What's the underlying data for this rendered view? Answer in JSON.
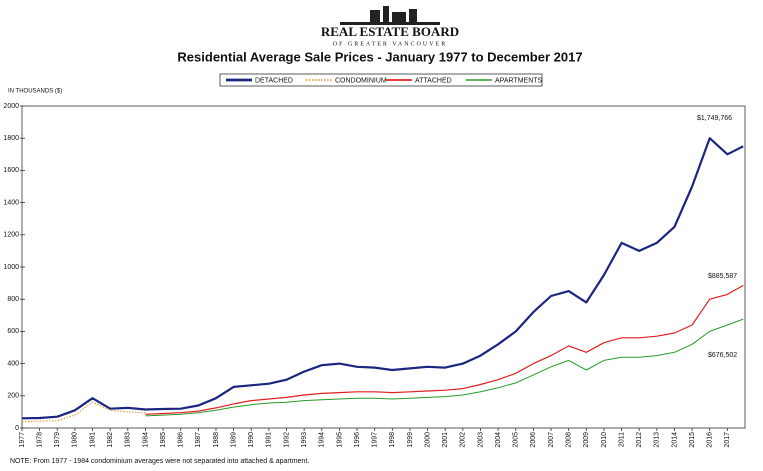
{
  "header": {
    "org": "REAL ESTATE BOARD",
    "org_sub": "OF GREATER VANCOUVER"
  },
  "chart_data": {
    "type": "line",
    "title": "Residential Average Sale Prices  -  January 1977 to December 2017",
    "y_label": "IN THOUSANDS ($)",
    "note": "NOTE: From 1977 - 1984 condominium averages were not separated into attached & apartment.",
    "annotations": [
      "$1,749,766",
      "$885,587",
      "$676,502"
    ],
    "x": [
      1977,
      1978,
      1979,
      1980,
      1981,
      1982,
      1983,
      1984,
      1985,
      1986,
      1987,
      1988,
      1989,
      1990,
      1991,
      1992,
      1993,
      1994,
      1995,
      1996,
      1997,
      1998,
      1999,
      2000,
      2001,
      2002,
      2003,
      2004,
      2005,
      2006,
      2007,
      2008,
      2009,
      2010,
      2011,
      2012,
      2013,
      2014,
      2015,
      2016,
      2017,
      2017.9
    ],
    "xlim": [
      1977,
      2018
    ],
    "xticks": [
      1977,
      1978,
      1979,
      1980,
      1981,
      1982,
      1983,
      1984,
      1985,
      1986,
      1987,
      1988,
      1989,
      1990,
      1991,
      1992,
      1993,
      1994,
      1995,
      1996,
      1997,
      1998,
      1999,
      2000,
      2001,
      2002,
      2003,
      2004,
      2005,
      2006,
      2007,
      2008,
      2009,
      2010,
      2011,
      2012,
      2013,
      2014,
      2015,
      2016,
      2017
    ],
    "ylim": [
      0,
      2000
    ],
    "yticks": [
      0,
      200,
      400,
      600,
      800,
      1000,
      1200,
      1400,
      1600,
      1800,
      2000
    ],
    "grid": false,
    "series": [
      {
        "name": "DETACHED",
        "color": "#1c2580",
        "style": "solid",
        "width": 2.2,
        "values": [
          60,
          62,
          70,
          110,
          185,
          120,
          125,
          115,
          118,
          120,
          140,
          185,
          255,
          265,
          275,
          300,
          350,
          390,
          400,
          380,
          375,
          360,
          370,
          380,
          375,
          400,
          450,
          520,
          600,
          720,
          820,
          850,
          780,
          950,
          1150,
          1100,
          1150,
          1250,
          1500,
          1800,
          1700,
          1749.766
        ]
      },
      {
        "name": "CONDOMINIUM",
        "color": "#e0a040",
        "style": "dotted",
        "width": 1.2,
        "values": [
          40,
          42,
          45,
          80,
          160,
          110,
          100,
          95,
          null,
          null,
          null,
          null,
          null,
          null,
          null,
          null,
          null,
          null,
          null,
          null,
          null,
          null,
          null,
          null,
          null,
          null,
          null,
          null,
          null,
          null,
          null,
          null,
          null,
          null,
          null,
          null,
          null,
          null,
          null,
          null,
          null,
          null
        ]
      },
      {
        "name": "ATTACHED",
        "color": "#e02020",
        "style": "solid",
        "width": 1.2,
        "values": [
          null,
          null,
          null,
          null,
          null,
          null,
          null,
          85,
          90,
          95,
          105,
          125,
          150,
          170,
          180,
          190,
          205,
          215,
          220,
          225,
          225,
          220,
          225,
          230,
          235,
          245,
          270,
          300,
          340,
          400,
          450,
          510,
          470,
          530,
          560,
          560,
          570,
          590,
          640,
          800,
          830,
          885.587
        ]
      },
      {
        "name": "APARTMENTS",
        "color": "#2a9a2a",
        "style": "solid",
        "width": 1,
        "values": [
          null,
          null,
          null,
          null,
          null,
          null,
          null,
          75,
          80,
          85,
          95,
          110,
          130,
          145,
          155,
          160,
          170,
          175,
          180,
          185,
          185,
          180,
          185,
          190,
          195,
          205,
          225,
          250,
          280,
          330,
          380,
          420,
          360,
          420,
          440,
          440,
          450,
          470,
          520,
          600,
          640,
          676.502
        ]
      }
    ]
  }
}
